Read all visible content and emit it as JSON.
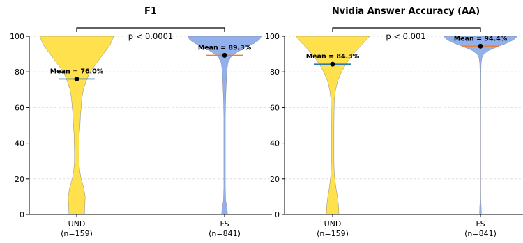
{
  "chart_data": [
    {
      "type": "violin",
      "title": "F1",
      "xlabel": "",
      "ylabel": "",
      "ylim": [
        0,
        100
      ],
      "yticks": [
        0,
        20,
        40,
        60,
        80,
        100
      ],
      "grid": "horizontal-dashed",
      "categories": [
        "UND\n(n=159)",
        "FS\n(n=841)"
      ],
      "series": [
        {
          "group": "UND",
          "n_label": "(n=159)",
          "color": "#ffe14d",
          "mean": 76.0,
          "mean_label": "Mean = 76.0%",
          "mean_line_color": "#2f7aa8",
          "profile": [
            [
              0,
              0.21
            ],
            [
              5,
              0.22
            ],
            [
              10,
              0.23
            ],
            [
              15,
              0.19
            ],
            [
              20,
              0.12
            ],
            [
              25,
              0.08
            ],
            [
              30,
              0.06
            ],
            [
              35,
              0.06
            ],
            [
              40,
              0.07
            ],
            [
              45,
              0.07
            ],
            [
              50,
              0.09
            ],
            [
              55,
              0.1
            ],
            [
              60,
              0.12
            ],
            [
              65,
              0.14
            ],
            [
              70,
              0.18
            ],
            [
              75,
              0.26
            ],
            [
              80,
              0.36
            ],
            [
              85,
              0.54
            ],
            [
              90,
              0.72
            ],
            [
              95,
              0.9
            ],
            [
              100,
              1.0
            ]
          ]
        },
        {
          "group": "FS",
          "n_label": "(n=841)",
          "color": "#92b1ec",
          "mean": 89.3,
          "mean_label": "Mean = 89.3%",
          "mean_line_color": "#e8803a",
          "profile": [
            [
              0,
              0.08
            ],
            [
              3,
              0.07
            ],
            [
              8,
              0.03
            ],
            [
              15,
              0.02
            ],
            [
              25,
              0.02
            ],
            [
              35,
              0.02
            ],
            [
              45,
              0.02
            ],
            [
              55,
              0.02
            ],
            [
              60,
              0.025
            ],
            [
              65,
              0.03
            ],
            [
              70,
              0.04
            ],
            [
              75,
              0.05
            ],
            [
              80,
              0.06
            ],
            [
              85,
              0.09
            ],
            [
              88,
              0.16
            ],
            [
              90,
              0.26
            ],
            [
              92,
              0.42
            ],
            [
              94,
              0.6
            ],
            [
              96,
              0.8
            ],
            [
              98,
              0.94
            ],
            [
              100,
              1.0
            ]
          ]
        }
      ],
      "annotation": "p < 0.0001"
    },
    {
      "type": "violin",
      "title": "Nvidia Answer Accuracy (AA)",
      "xlabel": "",
      "ylabel": "",
      "ylim": [
        0,
        100
      ],
      "yticks": [
        0,
        20,
        40,
        60,
        80,
        100
      ],
      "grid": "horizontal-dashed",
      "categories": [
        "UND\n(n=159)",
        "FS\n(n=841)"
      ],
      "series": [
        {
          "group": "UND",
          "n_label": "(n=159)",
          "color": "#ffe14d",
          "mean": 84.3,
          "mean_label": "Mean = 84.3%",
          "mean_line_color": "#2f7aa8",
          "profile": [
            [
              0,
              0.17
            ],
            [
              5,
              0.16
            ],
            [
              10,
              0.13
            ],
            [
              15,
              0.09
            ],
            [
              20,
              0.06
            ],
            [
              25,
              0.04
            ],
            [
              30,
              0.035
            ],
            [
              40,
              0.035
            ],
            [
              50,
              0.035
            ],
            [
              60,
              0.04
            ],
            [
              65,
              0.05
            ],
            [
              70,
              0.08
            ],
            [
              75,
              0.14
            ],
            [
              80,
              0.24
            ],
            [
              85,
              0.38
            ],
            [
              90,
              0.56
            ],
            [
              95,
              0.78
            ],
            [
              100,
              1.0
            ]
          ]
        },
        {
          "group": "FS",
          "n_label": "(n=841)",
          "color": "#92b1ec",
          "mean": 94.4,
          "mean_label": "Mean = 94.4%",
          "mean_line_color": "#e8803a",
          "profile": [
            [
              0,
              0.025
            ],
            [
              4,
              0.02
            ],
            [
              8,
              0.01
            ],
            [
              15,
              0.008
            ],
            [
              30,
              0.008
            ],
            [
              50,
              0.008
            ],
            [
              70,
              0.01
            ],
            [
              80,
              0.012
            ],
            [
              85,
              0.02
            ],
            [
              88,
              0.04
            ],
            [
              90,
              0.09
            ],
            [
              92,
              0.22
            ],
            [
              94,
              0.45
            ],
            [
              96,
              0.7
            ],
            [
              98,
              0.9
            ],
            [
              100,
              1.0
            ]
          ]
        }
      ],
      "annotation": "p < 0.001"
    }
  ]
}
